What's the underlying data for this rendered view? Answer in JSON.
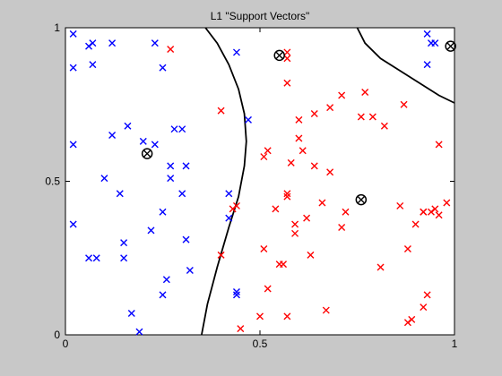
{
  "chart_data": {
    "type": "scatter",
    "title": "L1 \"Support Vectors\"",
    "xlabel": "",
    "ylabel": "",
    "xlim": [
      0,
      1
    ],
    "ylim": [
      0,
      1
    ],
    "xticks": [
      {
        "value": 0,
        "label": "0"
      },
      {
        "value": 0.5,
        "label": "0.5"
      },
      {
        "value": 1,
        "label": "1"
      }
    ],
    "yticks": [
      {
        "value": 0,
        "label": "0"
      },
      {
        "value": 0.5,
        "label": "0.5"
      },
      {
        "value": 1,
        "label": "1"
      }
    ],
    "grid": false,
    "legend": false,
    "colors": {
      "class_a": "#0000ff",
      "class_b": "#ff0000",
      "boundary": "#000000",
      "support": "#000000",
      "background": "#c8c8c8",
      "axes_bg": "#ffffff"
    },
    "series": [
      {
        "marker": "x",
        "color": "#0000ff",
        "points": [
          [
            0.02,
            0.98
          ],
          [
            0.07,
            0.95
          ],
          [
            0.06,
            0.94
          ],
          [
            0.12,
            0.95
          ],
          [
            0.23,
            0.95
          ],
          [
            0.02,
            0.87
          ],
          [
            0.07,
            0.88
          ],
          [
            0.25,
            0.87
          ],
          [
            0.44,
            0.92
          ],
          [
            0.47,
            0.7
          ],
          [
            0.16,
            0.68
          ],
          [
            0.28,
            0.67
          ],
          [
            0.3,
            0.67
          ],
          [
            0.12,
            0.65
          ],
          [
            0.2,
            0.63
          ],
          [
            0.23,
            0.62
          ],
          [
            0.02,
            0.62
          ],
          [
            0.27,
            0.55
          ],
          [
            0.31,
            0.55
          ],
          [
            0.1,
            0.51
          ],
          [
            0.27,
            0.51
          ],
          [
            0.14,
            0.46
          ],
          [
            0.3,
            0.46
          ],
          [
            0.42,
            0.46
          ],
          [
            0.25,
            0.4
          ],
          [
            0.42,
            0.38
          ],
          [
            0.02,
            0.36
          ],
          [
            0.22,
            0.34
          ],
          [
            0.15,
            0.3
          ],
          [
            0.31,
            0.31
          ],
          [
            0.06,
            0.25
          ],
          [
            0.08,
            0.25
          ],
          [
            0.15,
            0.25
          ],
          [
            0.32,
            0.21
          ],
          [
            0.26,
            0.18
          ],
          [
            0.25,
            0.13
          ],
          [
            0.44,
            0.14
          ],
          [
            0.44,
            0.13
          ],
          [
            0.17,
            0.07
          ],
          [
            0.19,
            0.01
          ],
          [
            0.93,
            0.98
          ],
          [
            0.94,
            0.95
          ],
          [
            0.95,
            0.95
          ],
          [
            0.93,
            0.88
          ]
        ]
      },
      {
        "marker": "x",
        "color": "#ff0000",
        "points": [
          [
            0.27,
            0.93
          ],
          [
            0.57,
            0.92
          ],
          [
            0.57,
            0.9
          ],
          [
            0.57,
            0.82
          ],
          [
            0.71,
            0.78
          ],
          [
            0.77,
            0.79
          ],
          [
            0.68,
            0.74
          ],
          [
            0.64,
            0.72
          ],
          [
            0.6,
            0.7
          ],
          [
            0.4,
            0.73
          ],
          [
            0.76,
            0.71
          ],
          [
            0.79,
            0.71
          ],
          [
            0.82,
            0.68
          ],
          [
            0.87,
            0.75
          ],
          [
            0.6,
            0.64
          ],
          [
            0.61,
            0.6
          ],
          [
            0.52,
            0.6
          ],
          [
            0.51,
            0.58
          ],
          [
            0.58,
            0.56
          ],
          [
            0.64,
            0.55
          ],
          [
            0.68,
            0.53
          ],
          [
            0.57,
            0.46
          ],
          [
            0.57,
            0.45
          ],
          [
            0.66,
            0.43
          ],
          [
            0.54,
            0.41
          ],
          [
            0.62,
            0.38
          ],
          [
            0.72,
            0.4
          ],
          [
            0.96,
            0.62
          ],
          [
            0.98,
            0.43
          ],
          [
            0.92,
            0.4
          ],
          [
            0.94,
            0.4
          ],
          [
            0.96,
            0.39
          ],
          [
            0.9,
            0.36
          ],
          [
            0.44,
            0.42
          ],
          [
            0.43,
            0.41
          ],
          [
            0.59,
            0.36
          ],
          [
            0.59,
            0.33
          ],
          [
            0.71,
            0.35
          ],
          [
            0.86,
            0.42
          ],
          [
            0.51,
            0.28
          ],
          [
            0.63,
            0.26
          ],
          [
            0.4,
            0.26
          ],
          [
            0.55,
            0.23
          ],
          [
            0.56,
            0.23
          ],
          [
            0.88,
            0.28
          ],
          [
            0.81,
            0.22
          ],
          [
            0.52,
            0.15
          ],
          [
            0.93,
            0.13
          ],
          [
            0.92,
            0.09
          ],
          [
            0.67,
            0.08
          ],
          [
            0.89,
            0.05
          ],
          [
            0.88,
            0.04
          ],
          [
            0.57,
            0.06
          ],
          [
            0.5,
            0.06
          ],
          [
            0.45,
            0.02
          ],
          [
            0.92,
            0.4
          ],
          [
            0.95,
            0.41
          ]
        ]
      }
    ],
    "support_vectors": [
      [
        0.21,
        0.59
      ],
      [
        0.55,
        0.91
      ],
      [
        0.76,
        0.44
      ],
      [
        0.99,
        0.94
      ]
    ],
    "boundaries": [
      [
        [
          0.36,
          1.0
        ],
        [
          0.39,
          0.95
        ],
        [
          0.42,
          0.88
        ],
        [
          0.445,
          0.8
        ],
        [
          0.46,
          0.72
        ],
        [
          0.465,
          0.63
        ],
        [
          0.46,
          0.55
        ],
        [
          0.445,
          0.45
        ],
        [
          0.42,
          0.35
        ],
        [
          0.39,
          0.22
        ],
        [
          0.365,
          0.1
        ],
        [
          0.35,
          0.0
        ]
      ],
      [
        [
          0.75,
          1.0
        ],
        [
          0.77,
          0.95
        ],
        [
          0.81,
          0.9
        ],
        [
          0.86,
          0.86
        ],
        [
          0.91,
          0.82
        ],
        [
          0.96,
          0.78
        ],
        [
          1.0,
          0.755
        ]
      ]
    ]
  }
}
